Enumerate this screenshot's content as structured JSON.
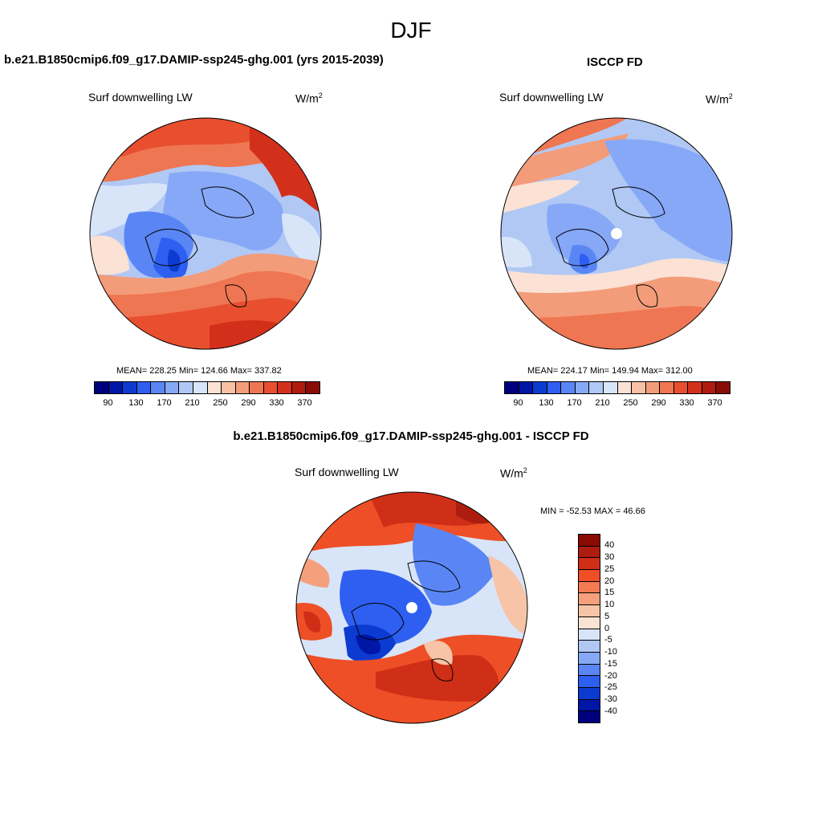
{
  "season": "DJF",
  "panels": {
    "model": {
      "title": "b.e21.B1850cmip6.f09_g17.DAMIP-ssp245-ghg.001 (yrs 2015-2039)",
      "variable": "Surf downwelling LW",
      "units_base": "W/m",
      "units_exp": "2",
      "stats": "MEAN= 228.25  Min= 124.66  Max= 337.82"
    },
    "obs": {
      "title": "ISCCP FD",
      "variable": "Surf downwelling LW",
      "units_base": "W/m",
      "units_exp": "2",
      "stats": "MEAN= 224.17  Min= 149.94  Max= 312.00"
    },
    "diff": {
      "title": "b.e21.B1850cmip6.f09_g17.DAMIP-ssp245-ghg.001 - ISCCP FD",
      "variable": "Surf downwelling LW",
      "units_base": "W/m",
      "units_exp": "2",
      "stats": "MIN = -52.53 MAX =  46.66"
    }
  },
  "colorbar_abs": {
    "colors": [
      "#00007f",
      "#0016a6",
      "#0c3bd1",
      "#2e5ff0",
      "#5a86f5",
      "#86a8f7",
      "#b1c8f5",
      "#d8e4f8",
      "#fbe2d4",
      "#f8c0a4",
      "#f39c79",
      "#ef7652",
      "#e84f2e",
      "#d3301b",
      "#b01b10",
      "#890d06"
    ],
    "tick_labels": [
      "90",
      "130",
      "170",
      "210",
      "250",
      "290",
      "330",
      "370"
    ]
  },
  "colorbar_diff": {
    "colors": [
      "#8a0a04",
      "#ad1d0f",
      "#cf2f17",
      "#ee4f26",
      "#f47a52",
      "#f5a07d",
      "#f7c4a7",
      "#fbe3d3",
      "#d8e4f8",
      "#b1c8f5",
      "#86a8f7",
      "#5a86f5",
      "#2e5ff0",
      "#0c3bd1",
      "#0016a6",
      "#00007f"
    ],
    "tick_labels": [
      "40",
      "30",
      "25",
      "20",
      "15",
      "10",
      "5",
      "0",
      "-5",
      "-10",
      "-15",
      "-20",
      "-25",
      "-30",
      "-40"
    ]
  }
}
